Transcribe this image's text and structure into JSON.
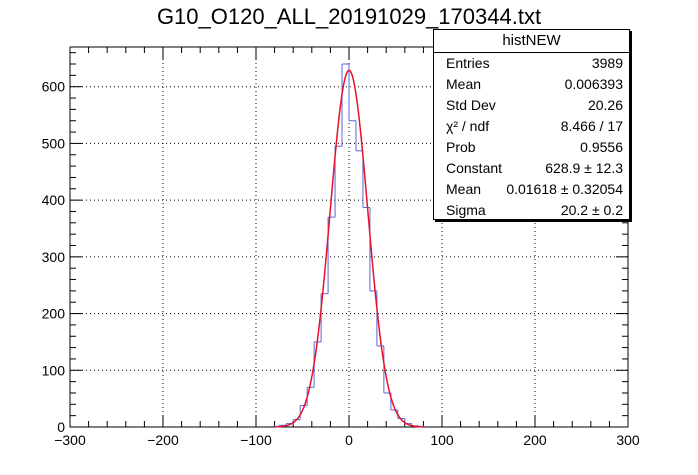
{
  "title": "G10_O120_ALL_20191029_170344.txt",
  "stats": {
    "name": "histNEW",
    "rows": [
      {
        "label": "Entries",
        "value": "3989"
      },
      {
        "label": "Mean",
        "value": "0.006393"
      },
      {
        "label": "Std Dev",
        "value": "20.26"
      },
      {
        "label": "χ² / ndf",
        "value": "8.466 / 17"
      },
      {
        "label": "Prob",
        "value": "0.9556"
      },
      {
        "label": "Constant",
        "value": "628.9 ± 12.3"
      },
      {
        "label": "Mean",
        "value": "0.01618 ± 0.32054"
      },
      {
        "label": "Sigma",
        "value": "20.2 ± 0.2"
      }
    ]
  },
  "chart_data": {
    "type": "histogram",
    "xlim": [
      -300,
      300
    ],
    "ylim": [
      0,
      670
    ],
    "xticks": [
      -300,
      -200,
      -100,
      0,
      100,
      200,
      300
    ],
    "xtick_labels": [
      "−300",
      "−200",
      "−100",
      "0",
      "100",
      "200",
      "300"
    ],
    "yticks": [
      0,
      100,
      200,
      300,
      400,
      500,
      600
    ],
    "grid": true,
    "bin_width": 7.5,
    "bins": [
      {
        "x0": -82.5,
        "count": 1
      },
      {
        "x0": -75,
        "count": 3
      },
      {
        "x0": -67.5,
        "count": 6
      },
      {
        "x0": -60,
        "count": 13
      },
      {
        "x0": -52.5,
        "count": 38
      },
      {
        "x0": -45,
        "count": 70
      },
      {
        "x0": -37.5,
        "count": 150
      },
      {
        "x0": -30,
        "count": 235
      },
      {
        "x0": -22.5,
        "count": 370
      },
      {
        "x0": -15,
        "count": 495
      },
      {
        "x0": -7.5,
        "count": 640
      },
      {
        "x0": 0,
        "count": 540
      },
      {
        "x0": 7.5,
        "count": 487
      },
      {
        "x0": 15,
        "count": 387
      },
      {
        "x0": 22.5,
        "count": 240
      },
      {
        "x0": 30,
        "count": 143
      },
      {
        "x0": 37.5,
        "count": 60
      },
      {
        "x0": 45,
        "count": 30
      },
      {
        "x0": 52.5,
        "count": 15
      },
      {
        "x0": 60,
        "count": 6
      },
      {
        "x0": 67.5,
        "count": 2
      },
      {
        "x0": 75,
        "count": 1
      }
    ],
    "fit": {
      "type": "gaus",
      "constant": 628.9,
      "mean": 0.01618,
      "sigma": 20.2,
      "range": [
        -80,
        80
      ]
    },
    "colors": {
      "hist": "#5b66d6",
      "fit": "#e8102a",
      "grid": "#000000"
    }
  }
}
